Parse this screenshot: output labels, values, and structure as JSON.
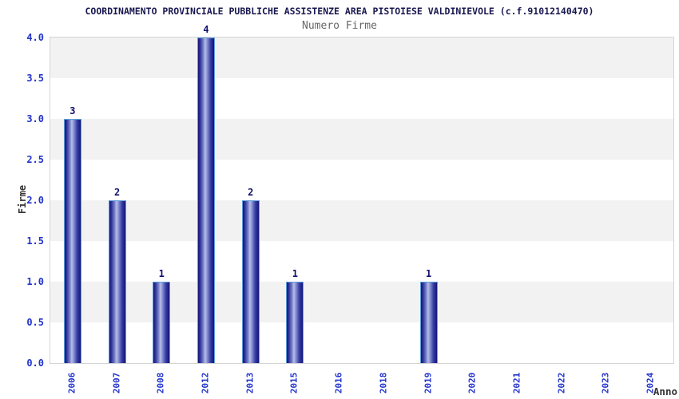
{
  "header": {
    "title": "COORDINAMENTO PROVINCIALE PUBBLICHE ASSISTENZE AREA PISTOIESE VALDINIEVOLE (c.f.91012140470)",
    "subtitle": "Numero Firme"
  },
  "chart_data": {
    "type": "bar",
    "title": "COORDINAMENTO PROVINCIALE PUBBLICHE ASSISTENZE AREA PISTOIESE VALDINIEVOLE (c.f.91012140470)",
    "subtitle": "Numero Firme",
    "xlabel": "Anno",
    "ylabel": "Firme",
    "categories": [
      "2006",
      "2007",
      "2008",
      "2012",
      "2013",
      "2015",
      "2016",
      "2018",
      "2019",
      "2020",
      "2021",
      "2022",
      "2023",
      "2024"
    ],
    "values": [
      3,
      2,
      1,
      4,
      2,
      1,
      0,
      0,
      1,
      0,
      0,
      0,
      0,
      0
    ],
    "bar_value_labels": [
      "3",
      "2",
      "1",
      "4",
      "2",
      "1",
      "",
      "",
      "1",
      "",
      "",
      "",
      "",
      ""
    ],
    "ylim": [
      0,
      4
    ],
    "ytick_labels": [
      "0.0",
      "0.5",
      "1.0",
      "1.5",
      "2.0",
      "2.5",
      "3.0",
      "3.5",
      "4.0"
    ],
    "grid": "alternating-horizontal-bands",
    "legend": "none"
  },
  "colors": {
    "title": "#181850",
    "subtitle": "#666666",
    "tick": "#2233cc",
    "axis_title": "#333333",
    "value_label": "#10106e",
    "bar_dark": "#14147a",
    "bar_light": "#b6bee8",
    "bar_outline": "#5e9fdc",
    "band_gray": "#f2f2f2",
    "band_white": "#ffffff",
    "plot_border": "#d4d4d4"
  }
}
